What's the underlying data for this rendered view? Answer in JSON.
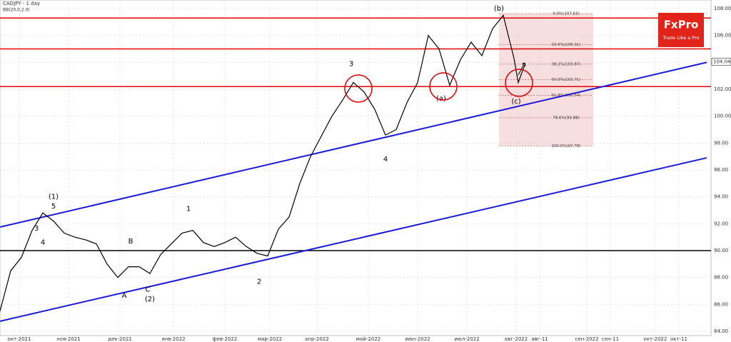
{
  "chart_data": {
    "type": "line",
    "title": "CADJPY - 1 day",
    "subtitle": "BB(20,0,2.0)",
    "brand": {
      "name": "FxPro",
      "tagline": "Trade Like a Pro"
    },
    "series": [
      {
        "name": "CADJPY",
        "color": "#000000",
        "x": [
          0,
          5,
          10,
          15,
          20,
          25,
          30,
          35,
          40,
          45,
          50,
          55,
          60,
          65,
          70,
          75,
          80,
          85,
          90,
          95,
          100,
          105,
          110,
          115,
          120,
          125,
          130,
          135,
          140,
          145,
          150,
          155,
          160,
          165,
          170,
          175,
          180,
          185,
          190,
          195,
          200,
          205,
          210,
          215,
          220,
          225,
          230,
          235,
          240,
          242,
          245
        ],
        "values": [
          85.5,
          88.5,
          89.5,
          91.5,
          92.8,
          92.2,
          91.3,
          91,
          90.8,
          90.5,
          89,
          88,
          88.8,
          88.8,
          88.3,
          89.7,
          90.5,
          91.3,
          91.5,
          90.6,
          90.3,
          90.6,
          91,
          90.3,
          89.8,
          89.6,
          91.6,
          92.5,
          95,
          97,
          98.5,
          100,
          101.2,
          102.5,
          101.8,
          100.5,
          98.6,
          99,
          101,
          102.5,
          106,
          105,
          102.3,
          104.2,
          105.5,
          104.5,
          106.5,
          107.5,
          104.3,
          102.5,
          103.8
        ]
      }
    ],
    "xlim": [
      0,
      330
    ],
    "xticks": [
      {
        "value": 9,
        "label": "окт-2021"
      },
      {
        "value": 32,
        "label": "ноя-2021"
      },
      {
        "value": 56,
        "label": "дек-2021"
      },
      {
        "value": 81,
        "label": "янв-2022"
      },
      {
        "value": 105,
        "label": "фев-2022"
      },
      {
        "value": 126,
        "label": "мар-2022"
      },
      {
        "value": 148,
        "label": "апр-2022"
      },
      {
        "value": 172,
        "label": "май-2022"
      },
      {
        "value": 195,
        "label": "июн-2022"
      },
      {
        "value": 218,
        "label": "июл-2022"
      },
      {
        "value": 241,
        "label": "авг-2022"
      },
      {
        "value": 252,
        "label": "авг-11"
      },
      {
        "value": 274,
        "label": "сен-2022"
      },
      {
        "value": 285,
        "label": "сен-11"
      },
      {
        "value": 306,
        "label": "окт-2022"
      },
      {
        "value": 317,
        "label": "окт-11"
      }
    ],
    "ylim": [
      83.68,
      108.64
    ],
    "yticks": [
      {
        "value": 84,
        "label": "84.00"
      },
      {
        "value": 86,
        "label": "86.00"
      },
      {
        "value": 88,
        "label": "88.00"
      },
      {
        "value": 90,
        "label": "90.00"
      },
      {
        "value": 92,
        "label": "92.00"
      },
      {
        "value": 94,
        "label": "94.00"
      },
      {
        "value": 96,
        "label": "96.00"
      },
      {
        "value": 98,
        "label": "98.00"
      },
      {
        "value": 100,
        "label": "100.00"
      },
      {
        "value": 102,
        "label": "102.00"
      },
      {
        "value": 104,
        "label": "104.00"
      },
      {
        "value": 106,
        "label": "106.00"
      },
      {
        "value": 108,
        "label": "108.00"
      }
    ],
    "grid": true,
    "last_label": {
      "value": 104.04,
      "label": "104.04"
    },
    "levels": [
      {
        "value": 107.3,
        "color": "#e00000"
      },
      {
        "value": 105,
        "color": "#e00000"
      },
      {
        "value": 102.2,
        "color": "#e00000"
      },
      {
        "value": 90,
        "color": "#000000"
      }
    ],
    "trendlines": [
      {
        "color": "#1a1adb",
        "x": [
          0,
          330
        ],
        "y": [
          91.75,
          104.0
        ]
      },
      {
        "color": "#1a1adb",
        "x": [
          0,
          330
        ],
        "y": [
          84.75,
          96.9
        ]
      }
    ],
    "fib": {
      "x": [
        233,
        277
      ],
      "color": "#f4c9c9",
      "levels": [
        {
          "value": 107.63,
          "label": "0.0%(107.63)"
        },
        {
          "value": 105.31,
          "label": "23.6%(105.31)"
        },
        {
          "value": 103.87,
          "label": "38.2%(103.87)"
        },
        {
          "value": 102.71,
          "label": "50.0%(102.71)"
        },
        {
          "value": 101.54,
          "label": "61.8%(101.54)"
        },
        {
          "value": 99.88,
          "label": "78.6%(99.88)"
        },
        {
          "value": 97.78,
          "label": "100.0%(97.78)"
        }
      ]
    },
    "wave_labels": [
      {
        "text": "(1)",
        "x": 25,
        "y": 94.0
      },
      {
        "text": "5",
        "x": 25,
        "y": 93.3
      },
      {
        "text": "3",
        "x": 17,
        "y": 91.65
      },
      {
        "text": "4",
        "x": 20,
        "y": 90.6
      },
      {
        "text": "B",
        "x": 61,
        "y": 90.7
      },
      {
        "text": "A",
        "x": 58,
        "y": 86.65
      },
      {
        "text": "C",
        "x": 69,
        "y": 87.1
      },
      {
        "text": "(2)",
        "x": 70,
        "y": 86.4
      },
      {
        "text": "1",
        "x": 88,
        "y": 93.1
      },
      {
        "text": "2",
        "x": 121,
        "y": 87.7
      },
      {
        "text": "3",
        "x": 164,
        "y": 103.9
      },
      {
        "text": "4",
        "x": 180,
        "y": 96.8
      },
      {
        "text": "(b)",
        "x": 233,
        "y": 108.0
      },
      {
        "text": "(a)",
        "x": 206,
        "y": 101.3
      },
      {
        "text": "(c)",
        "x": 241,
        "y": 101.1
      }
    ]
  }
}
